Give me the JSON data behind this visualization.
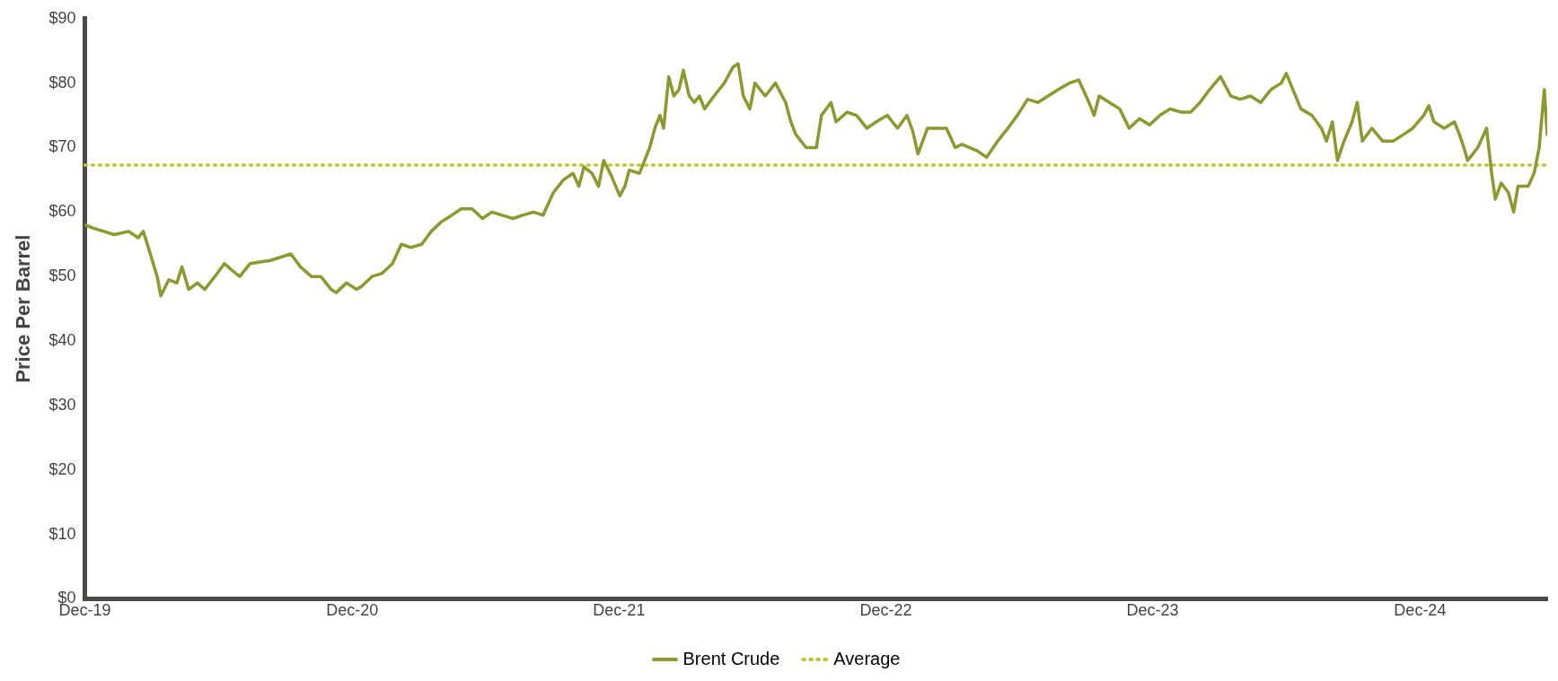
{
  "chart_data": {
    "type": "line",
    "ylabel": "Price Per Barrel",
    "x": [
      "2019-12-31",
      "2020-01-12",
      "2020-01-26",
      "2020-02-09",
      "2020-02-29",
      "2020-03-13",
      "2020-03-20",
      "2020-03-27",
      "2020-04-08",
      "2020-04-13",
      "2020-04-24",
      "2020-05-05",
      "2020-05-12",
      "2020-05-21",
      "2020-06-02",
      "2020-06-12",
      "2020-06-26",
      "2020-07-09",
      "2020-07-19",
      "2020-07-30",
      "2020-08-13",
      "2020-09-10",
      "2020-10-08",
      "2020-10-21",
      "2020-11-05",
      "2020-11-18",
      "2020-12-02",
      "2020-12-09",
      "2020-12-23",
      "2021-01-06",
      "2021-01-13",
      "2021-01-27",
      "2021-02-10",
      "2021-02-24",
      "2021-03-08",
      "2021-03-21",
      "2021-04-05",
      "2021-04-18",
      "2021-05-02",
      "2021-05-16",
      "2021-05-29",
      "2021-06-13",
      "2021-06-27",
      "2021-07-10",
      "2021-07-24",
      "2021-08-08",
      "2021-08-21",
      "2021-09-05",
      "2021-09-18",
      "2021-10-02",
      "2021-10-16",
      "2021-10-29",
      "2021-11-06",
      "2021-11-13",
      "2021-11-24",
      "2021-12-03",
      "2021-12-10",
      "2021-12-21",
      "2022-01-01",
      "2022-01-08",
      "2022-01-14",
      "2022-01-28",
      "2022-02-11",
      "2022-02-18",
      "2022-02-25",
      "2022-03-02",
      "2022-03-09",
      "2022-03-16",
      "2022-03-23",
      "2022-03-29",
      "2022-04-06",
      "2022-04-13",
      "2022-04-20",
      "2022-04-27",
      "2022-05-10",
      "2022-05-24",
      "2022-06-05",
      "2022-06-12",
      "2022-06-19",
      "2022-06-28",
      "2022-07-05",
      "2022-07-19",
      "2022-08-02",
      "2022-08-16",
      "2022-08-23",
      "2022-08-30",
      "2022-09-13",
      "2022-09-27",
      "2022-10-04",
      "2022-10-17",
      "2022-10-24",
      "2022-11-08",
      "2022-11-21",
      "2022-12-05",
      "2022-12-18",
      "2023-01-02",
      "2023-01-16",
      "2023-01-29",
      "2023-02-06",
      "2023-02-13",
      "2023-02-26",
      "2023-03-10",
      "2023-03-24",
      "2023-04-05",
      "2023-04-14",
      "2023-05-05",
      "2023-05-18",
      "2023-06-02",
      "2023-06-16",
      "2023-06-29",
      "2023-07-13",
      "2023-07-27",
      "2023-08-10",
      "2023-08-24",
      "2023-09-08",
      "2023-09-21",
      "2023-10-05",
      "2023-10-12",
      "2023-10-19",
      "2023-11-02",
      "2023-11-16",
      "2023-11-29",
      "2023-12-13",
      "2023-12-27",
      "2024-01-10",
      "2024-01-24",
      "2024-02-08",
      "2024-02-21",
      "2024-03-05",
      "2024-03-18",
      "2024-04-02",
      "2024-04-16",
      "2024-04-29",
      "2024-05-13",
      "2024-05-27",
      "2024-06-10",
      "2024-06-24",
      "2024-07-01",
      "2024-07-10",
      "2024-07-21",
      "2024-08-05",
      "2024-08-18",
      "2024-08-25",
      "2024-09-02",
      "2024-09-09",
      "2024-09-18",
      "2024-09-29",
      "2024-10-06",
      "2024-10-13",
      "2024-10-26",
      "2024-11-10",
      "2024-11-24",
      "2024-12-08",
      "2024-12-21",
      "2025-01-05",
      "2025-01-12",
      "2025-01-19",
      "2025-02-02",
      "2025-02-16",
      "2025-02-23",
      "2025-03-01",
      "2025-03-06",
      "2025-03-20",
      "2025-04-01",
      "2025-04-08",
      "2025-04-13",
      "2025-04-21",
      "2025-05-01",
      "2025-05-08",
      "2025-05-14",
      "2025-05-28",
      "2025-06-05",
      "2025-06-12",
      "2025-06-19",
      "2025-06-23"
    ],
    "series": [
      {
        "name": "Brent Crude",
        "color": "#8a9a2e",
        "values": [
          58,
          57.5,
          57,
          56.5,
          57,
          56,
          57,
          54.5,
          50,
          47,
          49.5,
          49,
          51.5,
          48,
          49,
          48,
          50,
          52,
          51,
          50,
          52,
          52.5,
          53.5,
          51.5,
          50,
          50,
          48,
          47.5,
          49,
          48,
          48.5,
          50,
          50.5,
          52,
          55,
          54.5,
          55,
          57,
          58.5,
          59.5,
          60.5,
          60.5,
          59,
          60,
          59.5,
          59,
          59.5,
          60,
          59.5,
          63,
          65,
          66,
          64,
          67,
          66,
          64,
          68,
          65.5,
          62.5,
          64,
          66.5,
          66,
          70,
          73,
          75,
          73,
          81,
          78,
          79,
          82,
          78,
          77,
          78,
          76,
          78,
          80,
          82.5,
          83,
          78,
          76,
          80,
          78,
          80,
          77,
          74,
          72,
          70,
          70,
          75,
          77,
          74,
          75.5,
          75,
          73,
          74,
          75,
          73,
          75,
          72.5,
          69,
          73,
          73,
          73,
          70,
          70.5,
          69.5,
          68.5,
          71,
          73,
          75,
          77.5,
          77,
          78,
          79,
          80,
          80.5,
          77,
          75,
          78,
          77,
          76,
          73,
          74.5,
          73.5,
          75,
          76,
          75.5,
          75.5,
          77,
          79,
          81,
          78,
          77.5,
          78,
          77,
          79,
          80,
          81.5,
          79,
          76,
          75,
          73,
          71,
          74,
          68,
          71,
          74,
          77,
          71,
          73,
          71,
          71,
          72,
          73,
          75,
          76.5,
          74,
          73,
          74,
          72,
          70,
          68,
          70,
          73,
          66,
          62,
          64.5,
          63,
          60,
          64,
          64,
          66,
          70,
          79,
          72
        ]
      }
    ],
    "xlim": [
      "2019-12-31",
      "2025-06-23"
    ],
    "xticks": [
      {
        "value": "2019-12-31",
        "label": "Dec-19"
      },
      {
        "value": "2020-12-31",
        "label": "Dec-20"
      },
      {
        "value": "2021-12-31",
        "label": "Dec-21"
      },
      {
        "value": "2022-12-31",
        "label": "Dec-22"
      },
      {
        "value": "2023-12-31",
        "label": "Dec-23"
      },
      {
        "value": "2024-12-31",
        "label": "Dec-24"
      }
    ],
    "ylim": [
      0,
      90
    ],
    "yticks": [
      {
        "value": 0,
        "label": "$0"
      },
      {
        "value": 10,
        "label": "$10"
      },
      {
        "value": 20,
        "label": "$20"
      },
      {
        "value": 30,
        "label": "$30"
      },
      {
        "value": 40,
        "label": "$40"
      },
      {
        "value": 50,
        "label": "$50"
      },
      {
        "value": 60,
        "label": "$60"
      },
      {
        "value": 70,
        "label": "$70"
      },
      {
        "value": 80,
        "label": "$80"
      },
      {
        "value": 90,
        "label": "$90"
      }
    ],
    "ref_lines": [
      {
        "axis": "y",
        "value": 67.3,
        "label": "Average",
        "color": "#b5cc3a",
        "line_style": "dotted"
      }
    ],
    "grid": false,
    "legend": "bottom",
    "marker": "none",
    "line_style": "solid"
  }
}
